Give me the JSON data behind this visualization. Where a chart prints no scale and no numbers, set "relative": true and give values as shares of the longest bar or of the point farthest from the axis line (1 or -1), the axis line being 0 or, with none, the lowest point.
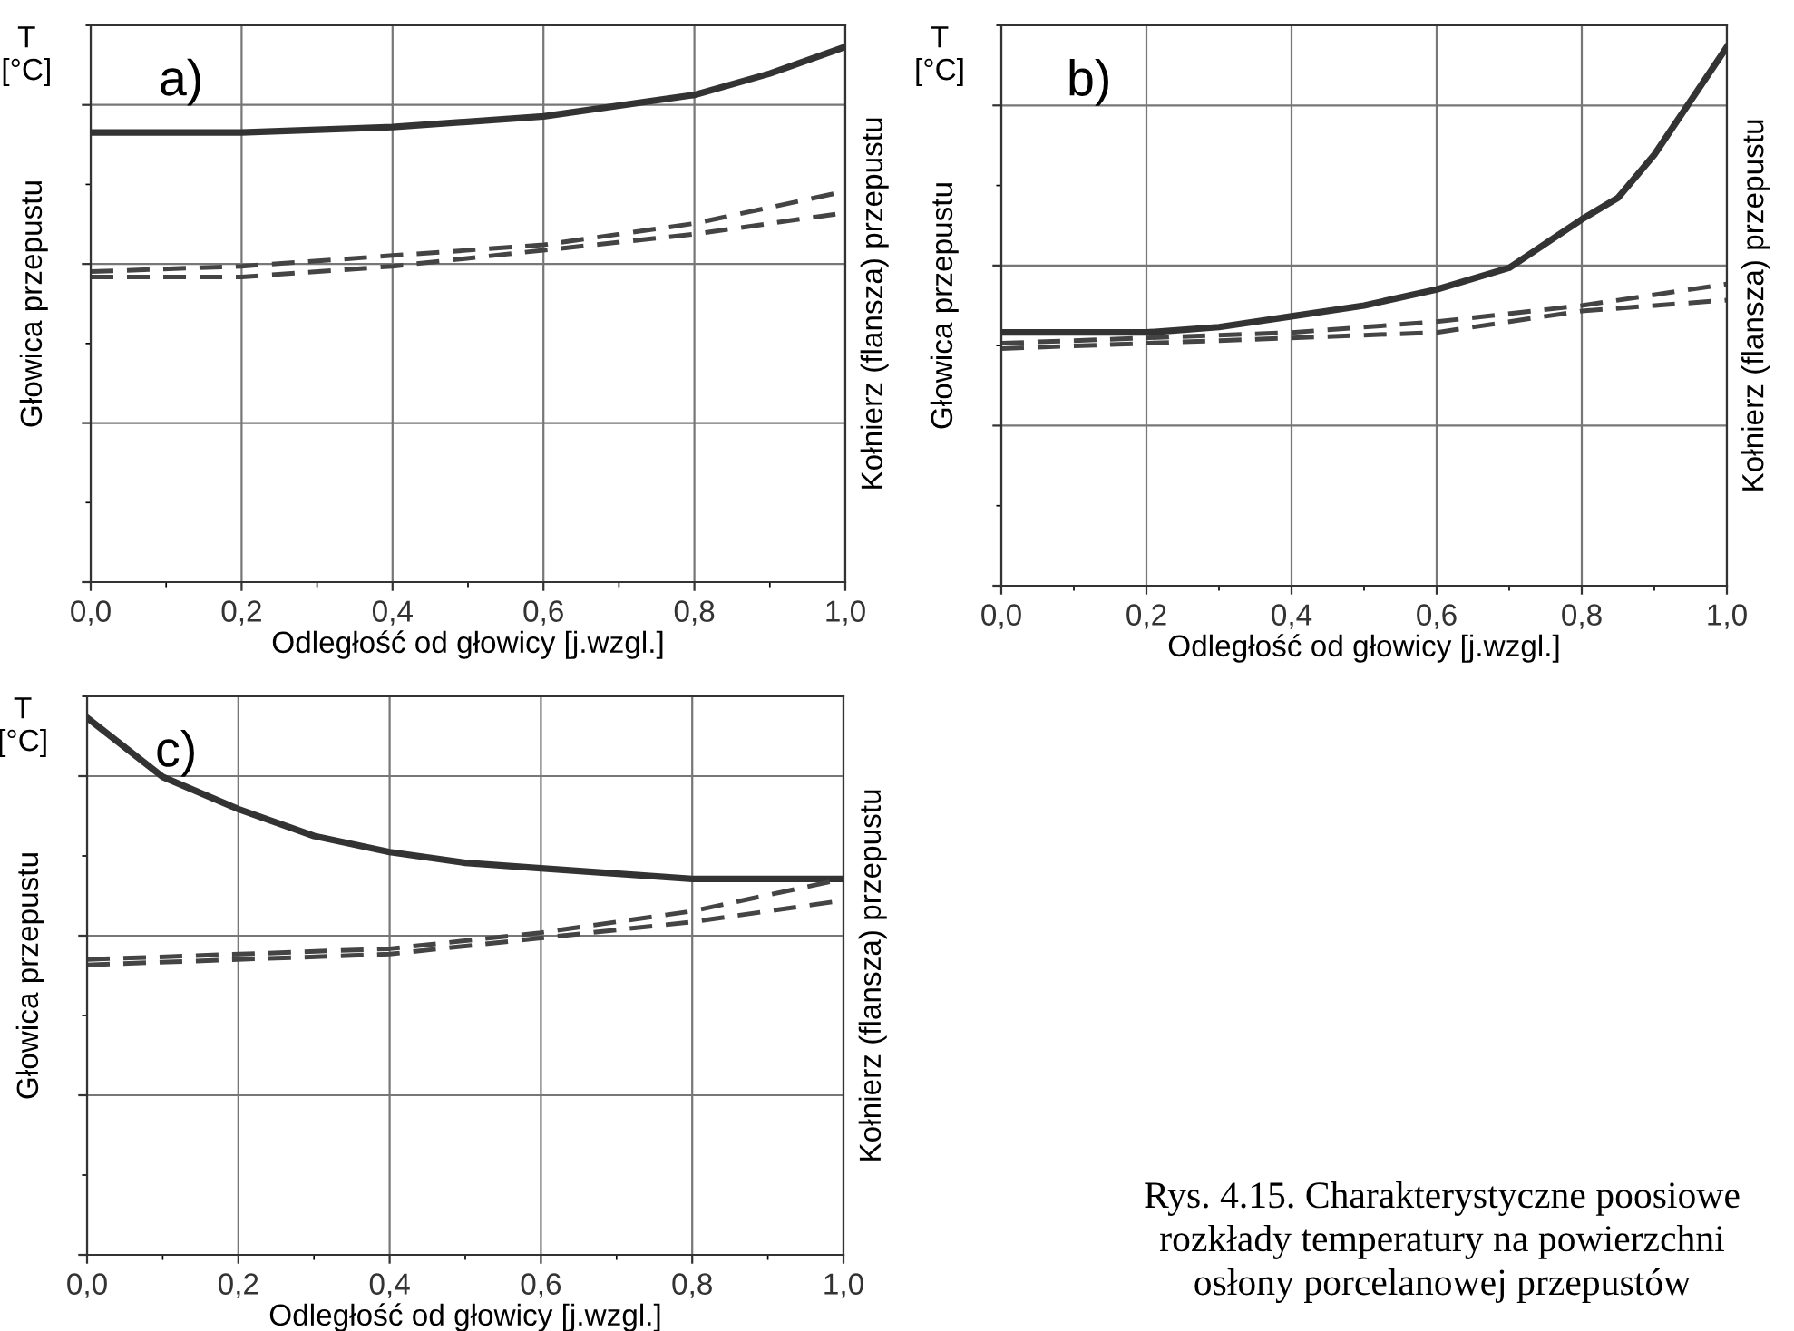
{
  "chart_data": [
    {
      "type": "line",
      "title": "a)",
      "relative": true,
      "xlabel": "Odległość od głowicy [j.wzgl.]",
      "ylabel": "Głowica przepustu",
      "y2label": "Kołnierz (flansza) przepustu",
      "annotations": [
        "T\n[°C]"
      ],
      "grid": true,
      "xlim": [
        0,
        1
      ],
      "xticks": [
        {
          "value": 0,
          "label": "0,0"
        },
        {
          "value": 0.2,
          "label": "0,2"
        },
        {
          "value": 0.4,
          "label": "0,4"
        },
        {
          "value": 0.6,
          "label": "0,6"
        },
        {
          "value": 0.8,
          "label": "0,8"
        },
        {
          "value": 1,
          "label": "1,0"
        }
      ],
      "series": [
        {
          "color": "#333333",
          "line_style": "solid",
          "x": [
            0,
            0.2,
            0.4,
            0.6,
            0.8,
            0.9,
            1.0
          ],
          "values": [
            0.84,
            0.84,
            0.85,
            0.87,
            0.91,
            0.95,
            1.0
          ]
        },
        {
          "color": "#444444",
          "line_style": "dashed",
          "x": [
            0,
            0.2,
            0.4,
            0.6,
            0.8,
            1.0
          ],
          "values": [
            0.58,
            0.59,
            0.61,
            0.63,
            0.67,
            0.73
          ]
        },
        {
          "color": "#444444",
          "line_style": "dashed",
          "x": [
            0,
            0.2,
            0.4,
            0.6,
            0.8,
            1.0
          ],
          "values": [
            0.57,
            0.57,
            0.59,
            0.62,
            0.65,
            0.69
          ]
        }
      ]
    },
    {
      "type": "line",
      "title": "b)",
      "relative": true,
      "xlabel": "Odległość od głowicy [j.wzgl.]",
      "ylabel": "Głowica przepustu",
      "y2label": "Kołnierz (flansza) przepustu",
      "annotations": [
        "T\n[°C]"
      ],
      "grid": true,
      "xlim": [
        0,
        1
      ],
      "xticks": [
        {
          "value": 0,
          "label": "0,0"
        },
        {
          "value": 0.2,
          "label": "0,2"
        },
        {
          "value": 0.4,
          "label": "0,4"
        },
        {
          "value": 0.6,
          "label": "0,6"
        },
        {
          "value": 0.8,
          "label": "0,8"
        },
        {
          "value": 1,
          "label": "1,0"
        }
      ],
      "series": [
        {
          "color": "#333333",
          "line_style": "solid",
          "x": [
            0,
            0.2,
            0.3,
            0.4,
            0.5,
            0.6,
            0.7,
            0.8,
            0.85,
            0.9,
            0.95,
            1.0
          ],
          "values": [
            0.47,
            0.47,
            0.48,
            0.5,
            0.52,
            0.55,
            0.59,
            0.68,
            0.72,
            0.8,
            0.9,
            1.0
          ]
        },
        {
          "color": "#444444",
          "line_style": "dashed",
          "x": [
            0,
            0.4,
            0.6,
            0.8,
            1.0
          ],
          "values": [
            0.45,
            0.47,
            0.49,
            0.52,
            0.56
          ]
        },
        {
          "color": "#444444",
          "line_style": "dashed",
          "x": [
            0,
            0.4,
            0.6,
            0.8,
            1.0
          ],
          "values": [
            0.44,
            0.46,
            0.47,
            0.51,
            0.53
          ]
        }
      ]
    },
    {
      "type": "line",
      "title": "c)",
      "relative": true,
      "xlabel": "Odległość od głowicy [j.wzgl.]",
      "ylabel": "Głowica przepustu",
      "y2label": "Kołnierz (flansza) przepustu",
      "annotations": [
        "T\n[°C]",
        "Rys. 4.15. Charakterystyczne poosiowe\nrozkłady temperatury na powierzchni\nosłony porcelanowej przepustów"
      ],
      "grid": true,
      "xlim": [
        0,
        1
      ],
      "xticks": [
        {
          "value": 0,
          "label": "0,0"
        },
        {
          "value": 0.2,
          "label": "0,2"
        },
        {
          "value": 0.4,
          "label": "0,4"
        },
        {
          "value": 0.6,
          "label": "0,6"
        },
        {
          "value": 0.8,
          "label": "0,8"
        },
        {
          "value": 1,
          "label": "1,0"
        }
      ],
      "series": [
        {
          "color": "#333333",
          "line_style": "solid",
          "x": [
            0,
            0.1,
            0.2,
            0.3,
            0.4,
            0.5,
            0.6,
            0.8,
            1.0
          ],
          "values": [
            1.0,
            0.89,
            0.83,
            0.78,
            0.75,
            0.73,
            0.72,
            0.7,
            0.7
          ]
        },
        {
          "color": "#444444",
          "line_style": "dashed",
          "x": [
            0,
            0.4,
            0.6,
            0.8,
            1.0
          ],
          "values": [
            0.55,
            0.57,
            0.6,
            0.64,
            0.7
          ]
        },
        {
          "color": "#444444",
          "line_style": "dashed",
          "x": [
            0,
            0.4,
            0.6,
            0.8,
            1.0
          ],
          "values": [
            0.54,
            0.56,
            0.59,
            0.62,
            0.66
          ]
        }
      ]
    }
  ]
}
